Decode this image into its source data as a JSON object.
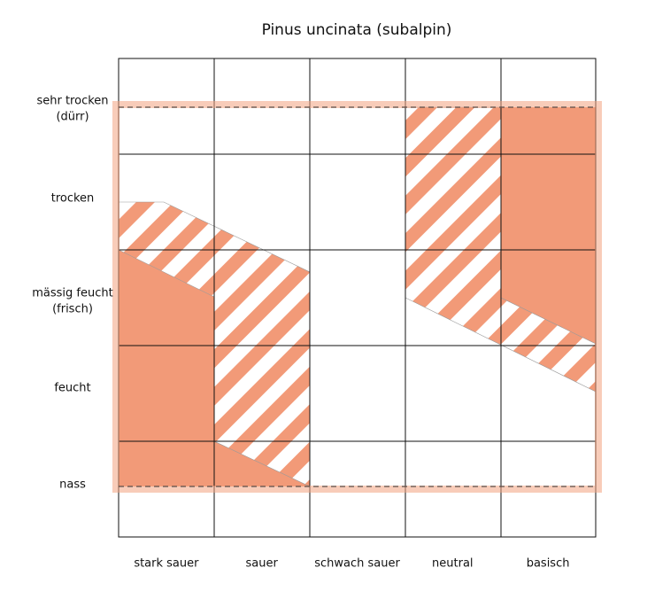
{
  "title": "Pinus uncinata (subalpin)",
  "rows": [
    [
      "sehr trocken",
      "(dürr)"
    ],
    [
      "trocken"
    ],
    [
      "mässig feucht",
      "(frisch)"
    ],
    [
      "feucht"
    ],
    [
      "nass"
    ]
  ],
  "columns": [
    "stark sauer",
    "sauer",
    "schwach sauer",
    "neutral",
    "basisch"
  ]
}
